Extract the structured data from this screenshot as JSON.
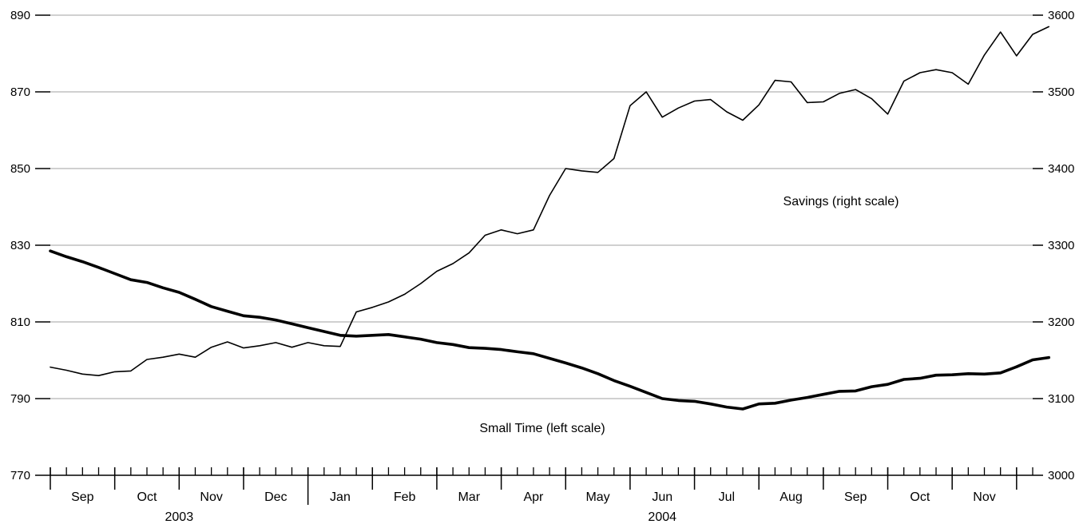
{
  "chart_data": {
    "type": "line",
    "title": "",
    "grid": true,
    "left_axis": {
      "ticks": [
        770,
        790,
        810,
        830,
        850,
        870,
        890
      ],
      "ylim": [
        770,
        890
      ]
    },
    "right_axis": {
      "ticks": [
        3000,
        3100,
        3200,
        3300,
        3400,
        3500,
        3600
      ],
      "ylim": [
        3000,
        3600
      ]
    },
    "x_axis": {
      "months": [
        {
          "label": "Sep",
          "weeks": 4
        },
        {
          "label": "Oct",
          "weeks": 4
        },
        {
          "label": "Nov",
          "weeks": 4
        },
        {
          "label": "Dec",
          "weeks": 4
        },
        {
          "label": "Jan",
          "weeks": 4
        },
        {
          "label": "Feb",
          "weeks": 4
        },
        {
          "label": "Mar",
          "weeks": 4
        },
        {
          "label": "Apr",
          "weeks": 4
        },
        {
          "label": "May",
          "weeks": 4
        },
        {
          "label": "Jun",
          "weeks": 4
        },
        {
          "label": "Jul",
          "weeks": 4
        },
        {
          "label": "Aug",
          "weeks": 4
        },
        {
          "label": "Sep",
          "weeks": 4
        },
        {
          "label": "Oct",
          "weeks": 4
        },
        {
          "label": "Nov",
          "weeks": 4
        }
      ],
      "years": [
        {
          "label": "2003",
          "start_month": 0,
          "end_month": 3
        },
        {
          "label": "2004",
          "start_month": 4,
          "end_month": 14
        }
      ]
    },
    "series": [
      {
        "name": "Small Time (left scale)",
        "axis": "left",
        "color": "#000000",
        "emphasis": "thick",
        "values": [
          828.5,
          827.0,
          825.7,
          824.2,
          822.6,
          821.0,
          820.3,
          818.9,
          817.7,
          815.9,
          814.0,
          812.8,
          811.6,
          811.2,
          810.5,
          809.5,
          808.5,
          807.5,
          806.5,
          806.3,
          806.5,
          806.7,
          806.1,
          805.5,
          804.6,
          804.1,
          803.3,
          803.1,
          802.8,
          802.2,
          801.7,
          800.5,
          799.3,
          798.0,
          796.5,
          794.7,
          793.2,
          791.6,
          790.0,
          789.5,
          789.3,
          788.6,
          787.8,
          787.3,
          788.6,
          788.8,
          789.6,
          790.3,
          791.1,
          791.9,
          792.0,
          793.1,
          793.7,
          795.0,
          795.3,
          796.1,
          796.2,
          796.5,
          796.4,
          796.7,
          798.3,
          800.1,
          800.7
        ]
      },
      {
        "name": "Savings (right scale)",
        "axis": "right",
        "color": "#000000",
        "emphasis": "thin",
        "values": [
          3141,
          3137,
          3132,
          3130,
          3135,
          3136,
          3151,
          3154,
          3158,
          3154,
          3167,
          3174,
          3166,
          3169,
          3173,
          3167,
          3173,
          3169,
          3168,
          3213,
          3219,
          3226,
          3236,
          3250,
          3266,
          3276,
          3290,
          3313,
          3320,
          3315,
          3320,
          3365,
          3400,
          3397,
          3395,
          3413,
          3482,
          3500,
          3467,
          3479,
          3488,
          3490,
          3474,
          3463,
          3483,
          3515,
          3513,
          3486,
          3487,
          3498,
          3503,
          3491,
          3471,
          3514,
          3525,
          3529,
          3525,
          3510,
          3548,
          3578,
          3547,
          3575,
          3585
        ]
      }
    ],
    "annotations": [
      {
        "text": "Savings (right scale)",
        "series": "Savings (right scale)"
      },
      {
        "text": "Small Time (left scale)",
        "series": "Small Time (left scale)"
      }
    ]
  }
}
